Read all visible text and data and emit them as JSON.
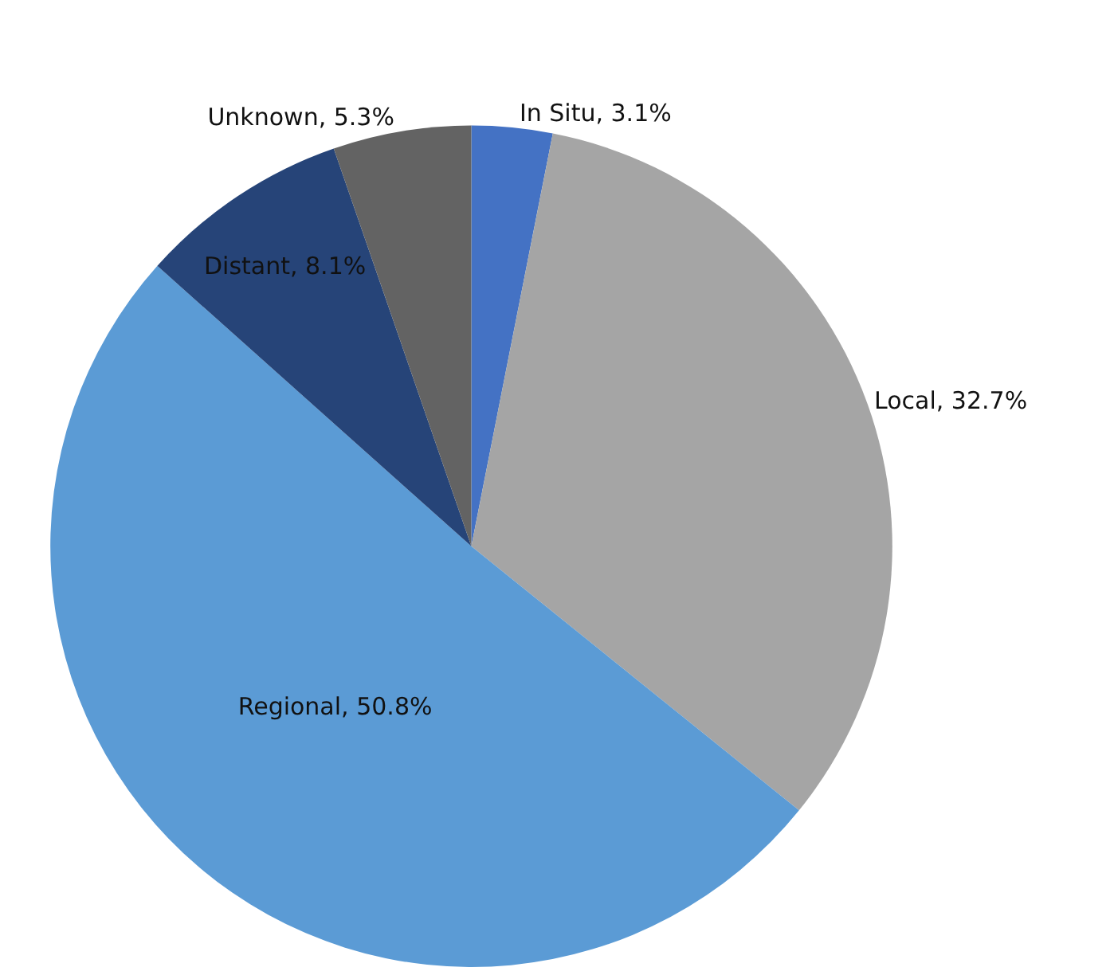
{
  "chart_data": {
    "type": "pie",
    "categories": [
      "In Situ",
      "Local",
      "Regional",
      "Distant",
      "Unknown"
    ],
    "values": [
      3.1,
      32.7,
      50.8,
      8.1,
      5.3
    ],
    "value_labels": [
      "3.1%",
      "32.7%",
      "50.8%",
      "8.1%",
      "5.3%"
    ],
    "colors": [
      "#4472c4",
      "#a5a5a5",
      "#5b9bd5",
      "#264478",
      "#636363"
    ],
    "legend": false
  }
}
